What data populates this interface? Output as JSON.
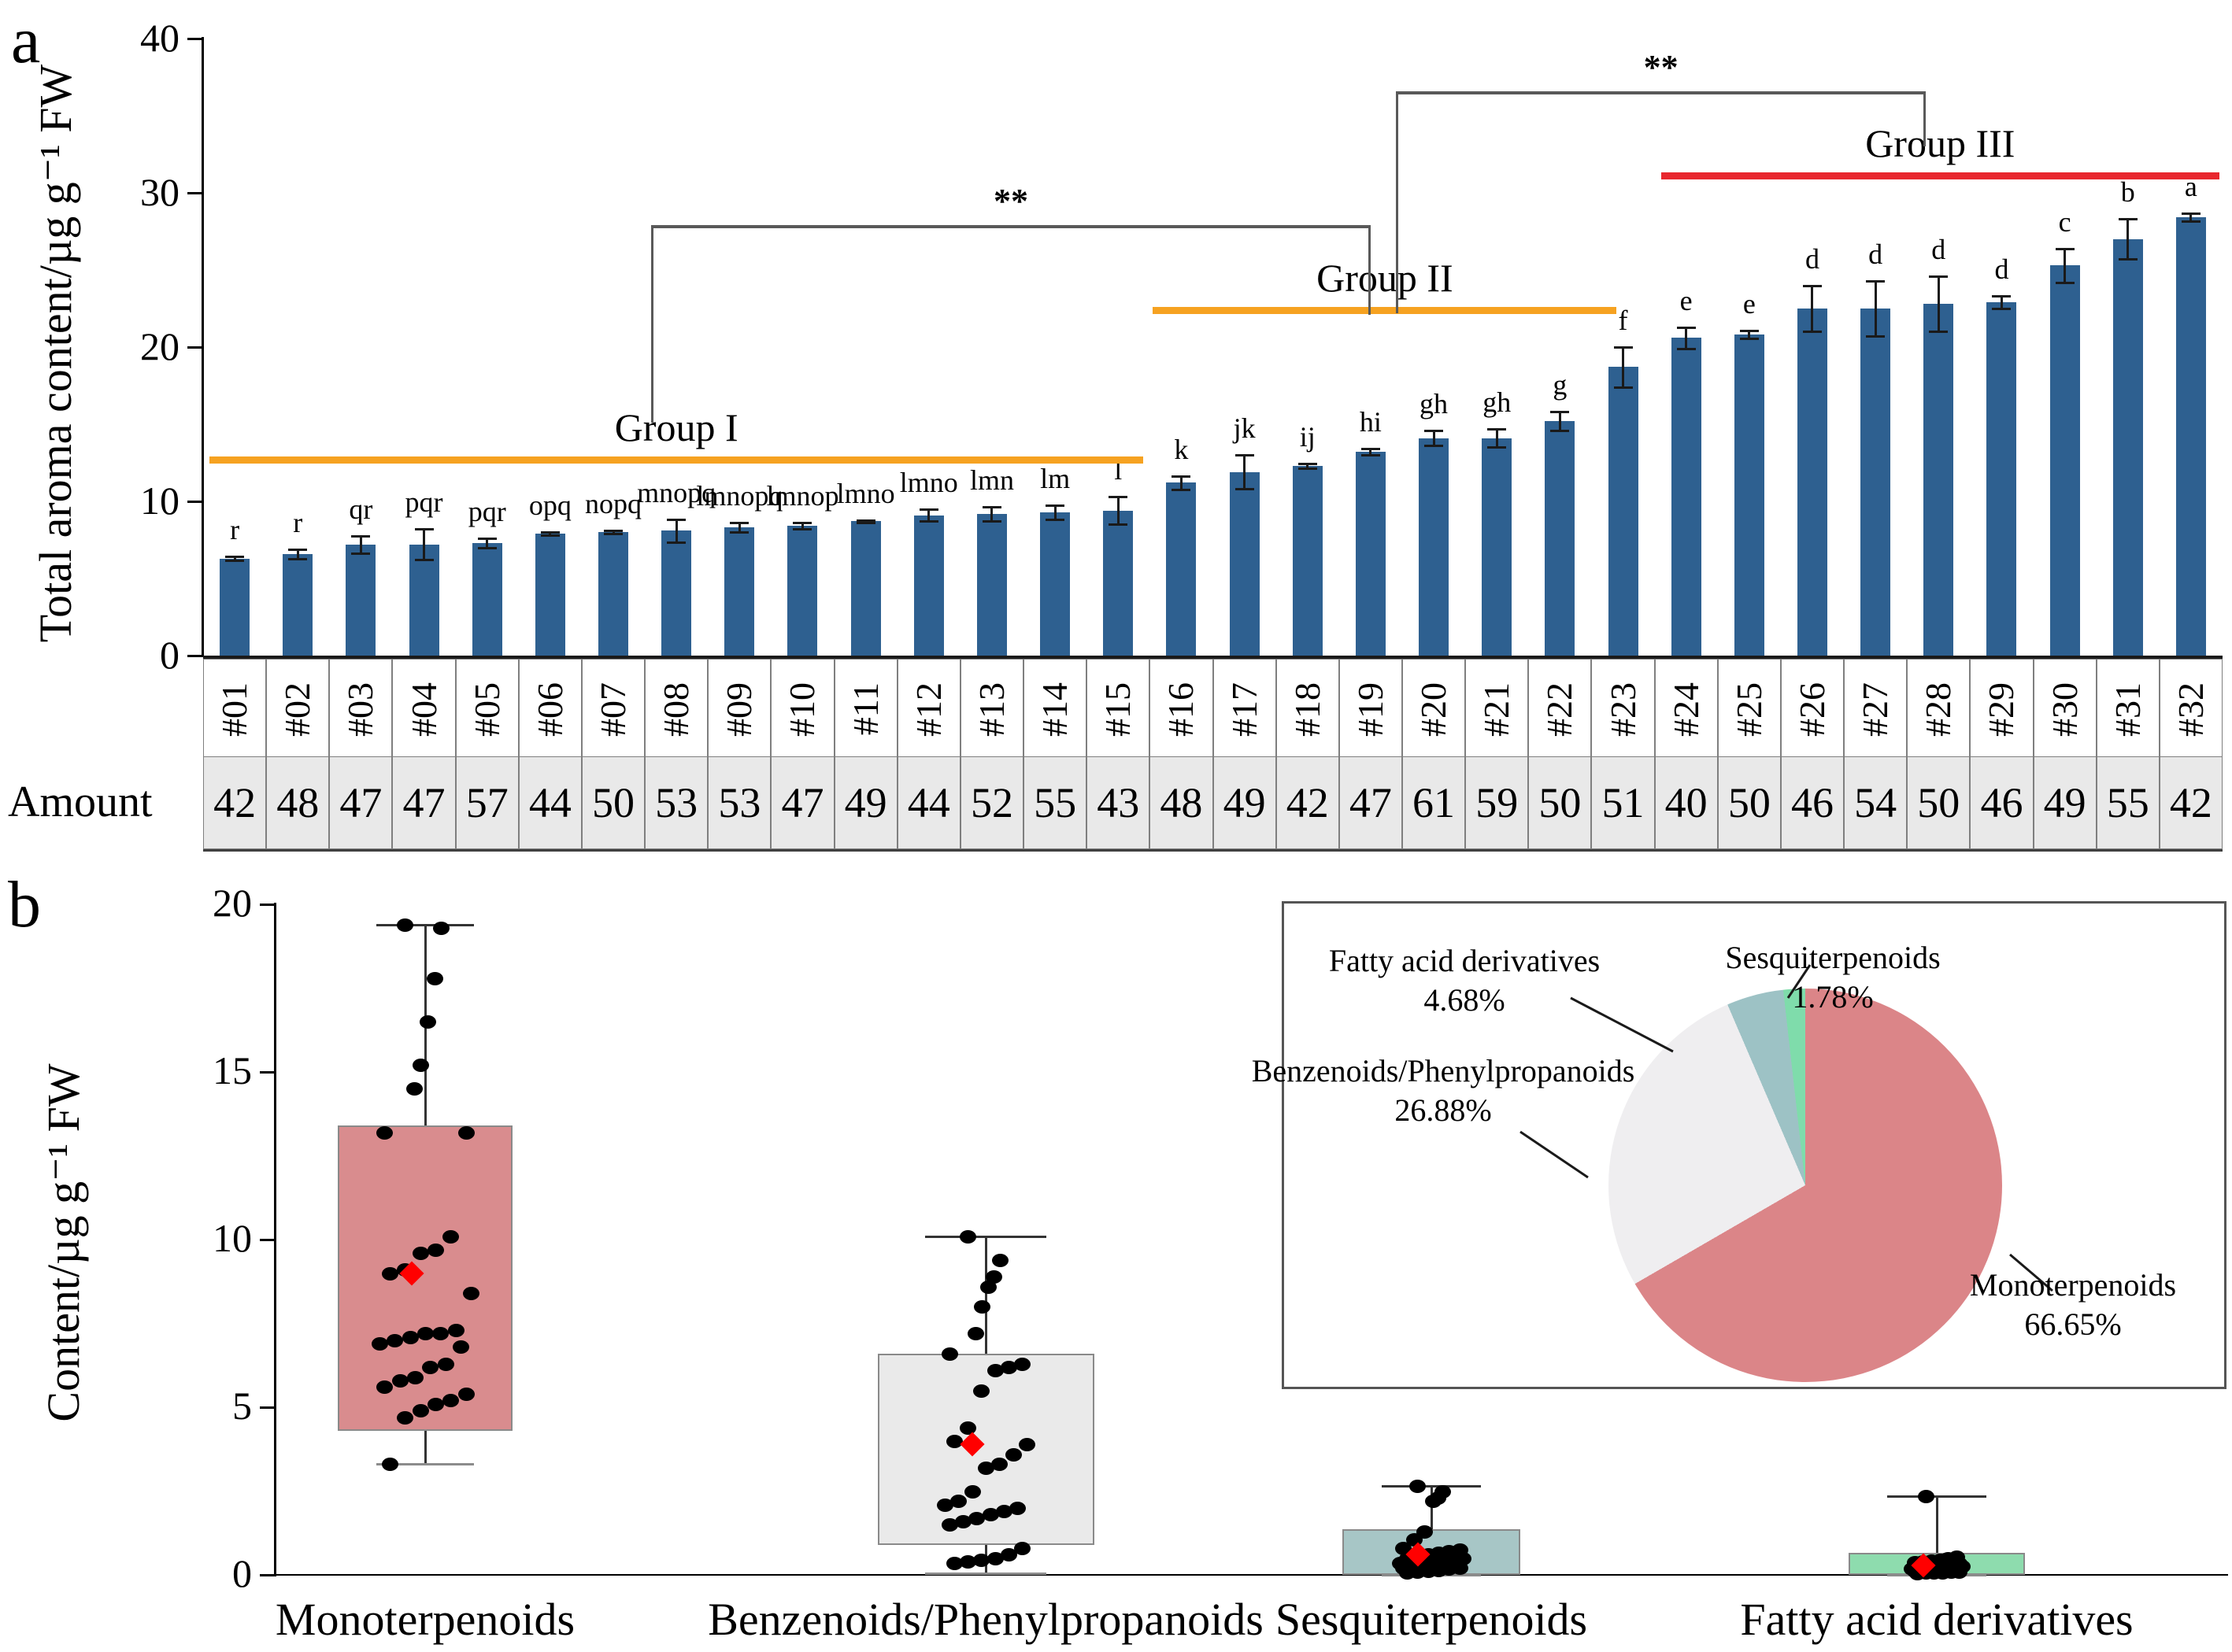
{
  "figure": {
    "panel_a_letter": "a",
    "panel_b_letter": "b"
  },
  "chart_data": [
    {
      "id": "panel-a-bars",
      "type": "bar",
      "title": "",
      "ylabel": "Total aroma content/µg g⁻¹ FW",
      "xlabel": "",
      "ylim": [
        0,
        40
      ],
      "yticks": [
        0,
        10,
        20,
        30,
        40
      ],
      "grid": false,
      "bar_color": "#2E6090",
      "categories": [
        "#01",
        "#02",
        "#03",
        "#04",
        "#05",
        "#06",
        "#07",
        "#08",
        "#09",
        "#10",
        "#11",
        "#12",
        "#13",
        "#14",
        "#15",
        "#16",
        "#17",
        "#18",
        "#19",
        "#20",
        "#21",
        "#22",
        "#23",
        "#24",
        "#25",
        "#26",
        "#27",
        "#28",
        "#29",
        "#30",
        "#31",
        "#32"
      ],
      "values": [
        6.3,
        6.6,
        7.2,
        7.2,
        7.3,
        7.9,
        8.0,
        8.1,
        8.3,
        8.4,
        8.7,
        9.1,
        9.2,
        9.3,
        9.4,
        11.2,
        11.9,
        12.3,
        13.2,
        14.1,
        14.1,
        15.2,
        18.7,
        20.6,
        20.8,
        22.5,
        22.5,
        22.8,
        22.9,
        25.3,
        27.0,
        28.4
      ],
      "errors": [
        0.15,
        0.3,
        0.55,
        1.0,
        0.3,
        0.1,
        0.1,
        0.75,
        0.3,
        0.2,
        0.1,
        0.4,
        0.45,
        0.45,
        0.9,
        0.45,
        1.1,
        0.15,
        0.2,
        0.5,
        0.6,
        0.6,
        1.3,
        0.7,
        0.25,
        1.5,
        1.8,
        1.8,
        0.4,
        1.1,
        1.3,
        0.25
      ],
      "sig_letters": [
        "r",
        "r",
        "qr",
        "pqr",
        "pqr",
        "opq",
        "nopq",
        "mnopq",
        "lmnopq",
        "lmnop",
        "lmno",
        "lmno",
        "lmn",
        "lm",
        "l",
        "k",
        "jk",
        "ij",
        "hi",
        "gh",
        "gh",
        "g",
        "f",
        "e",
        "e",
        "d",
        "d",
        "d",
        "d",
        "c",
        "b",
        "a"
      ],
      "amount_row_label": "Amount",
      "amounts": [
        42,
        48,
        47,
        47,
        57,
        44,
        50,
        53,
        53,
        47,
        49,
        44,
        52,
        55,
        43,
        48,
        49,
        42,
        47,
        61,
        59,
        50,
        51,
        40,
        50,
        46,
        54,
        50,
        46,
        49,
        55,
        42
      ],
      "groups": [
        {
          "label": "Group I",
          "color": "#F6A221",
          "start_cell": 0.1,
          "end_cell": 14.9,
          "line_y": 12.7
        },
        {
          "label": "Group II",
          "color": "#F6A221",
          "start_cell": 15.05,
          "end_cell": 22.4,
          "line_y": 22.4
        },
        {
          "label": "Group III",
          "color": "#E8262D",
          "start_cell": 23.1,
          "end_cell": 31.95,
          "line_y": 31.1
        }
      ],
      "sig_brackets": [
        {
          "label": "**",
          "x1_cell": 7.1,
          "x2_cell": 18.5,
          "y": 27.9,
          "leg1_down_to": 15.1,
          "leg2_down_to": 22.1
        },
        {
          "label": "**",
          "x1_cell": 18.9,
          "x2_cell": 27.3,
          "y": 36.6,
          "leg1_down_to": 22.2,
          "leg2_down_to": 33.0
        }
      ]
    },
    {
      "id": "panel-b-boxplot",
      "type": "boxplot",
      "ylabel": "Content/µg g⁻¹ FW",
      "ylim": [
        0,
        20
      ],
      "yticks": [
        0,
        5,
        10,
        15,
        20
      ],
      "grid": false,
      "point_color": "#000000",
      "mean_marker_color": "#FF0000",
      "series": [
        {
          "name": "Monoterpenoids",
          "box_color": "#D98C8E",
          "q1": 4.3,
          "q3": 13.4,
          "whisker_low": 3.3,
          "whisker_high": 19.4,
          "mean": 9.0,
          "points": [
            19.4,
            19.3,
            17.8,
            16.5,
            15.2,
            14.5,
            13.2,
            13.2,
            10.1,
            9.7,
            9.6,
            9.1,
            9.0,
            8.4,
            7.3,
            7.2,
            7.2,
            7.1,
            7.0,
            6.9,
            6.8,
            6.3,
            6.2,
            5.9,
            5.8,
            5.6,
            5.4,
            5.2,
            5.1,
            4.9,
            4.7,
            3.3
          ]
        },
        {
          "name": "Benzenoids/Phenylpropanoids",
          "box_color": "#EAEAEA",
          "q1": 0.9,
          "q3": 6.6,
          "whisker_low": 0.05,
          "whisker_high": 10.1,
          "mean": 3.9,
          "points": [
            10.1,
            9.4,
            8.9,
            8.6,
            8.0,
            7.2,
            6.6,
            6.3,
            6.2,
            6.1,
            5.5,
            4.4,
            4.0,
            3.9,
            3.6,
            3.3,
            3.2,
            2.5,
            2.2,
            2.1,
            2.0,
            1.9,
            1.8,
            1.7,
            1.6,
            1.5,
            0.8,
            0.6,
            0.5,
            0.45,
            0.4,
            0.35
          ]
        },
        {
          "name": "Sesquiterpenoids",
          "box_color": "#A7C6C6",
          "q1": 0.0,
          "q3": 1.36,
          "whisker_low": 0.0,
          "whisker_high": 2.65,
          "mean": 0.6,
          "points": [
            2.65,
            2.5,
            2.3,
            2.2,
            1.3,
            1.05,
            0.8,
            0.75,
            0.7,
            0.65,
            0.6,
            0.55,
            0.5,
            0.5,
            0.45,
            0.45,
            0.4,
            0.4,
            0.35,
            0.35,
            0.3,
            0.3,
            0.28,
            0.25,
            0.25,
            0.2,
            0.2,
            0.18,
            0.15,
            0.12,
            0.1,
            0.08
          ]
        },
        {
          "name": "Fatty acid derivatives",
          "box_color": "#8EDCAE",
          "q1": 0.0,
          "q3": 0.65,
          "whisker_low": 0.0,
          "whisker_high": 2.35,
          "mean": 0.28,
          "points": [
            2.35,
            0.55,
            0.5,
            0.45,
            0.42,
            0.4,
            0.38,
            0.35,
            0.33,
            0.3,
            0.3,
            0.28,
            0.27,
            0.25,
            0.25,
            0.22,
            0.22,
            0.2,
            0.2,
            0.18,
            0.18,
            0.15,
            0.15,
            0.13,
            0.12,
            0.12,
            0.1,
            0.1,
            0.08,
            0.08,
            0.06,
            0.05
          ]
        }
      ]
    },
    {
      "id": "panel-b-pie",
      "type": "pie",
      "legend_position": "labels-with-leader-lines",
      "slices": [
        {
          "label": "Monoterpenoids",
          "pct": 66.65,
          "pct_label": "66.65%",
          "color": "#DB8588"
        },
        {
          "label": "Benzenoids/Phenylpropanoids",
          "pct": 26.88,
          "pct_label": "26.88%",
          "color": "#EFEEF0"
        },
        {
          "label": "Fatty acid derivatives",
          "pct": 4.68,
          "pct_label": "4.68%",
          "color": "#9DC2C5"
        },
        {
          "label": "Sesquiterpenoids",
          "pct": 1.78,
          "pct_label": "1.78%",
          "color": "#7FDCAB"
        }
      ]
    }
  ]
}
